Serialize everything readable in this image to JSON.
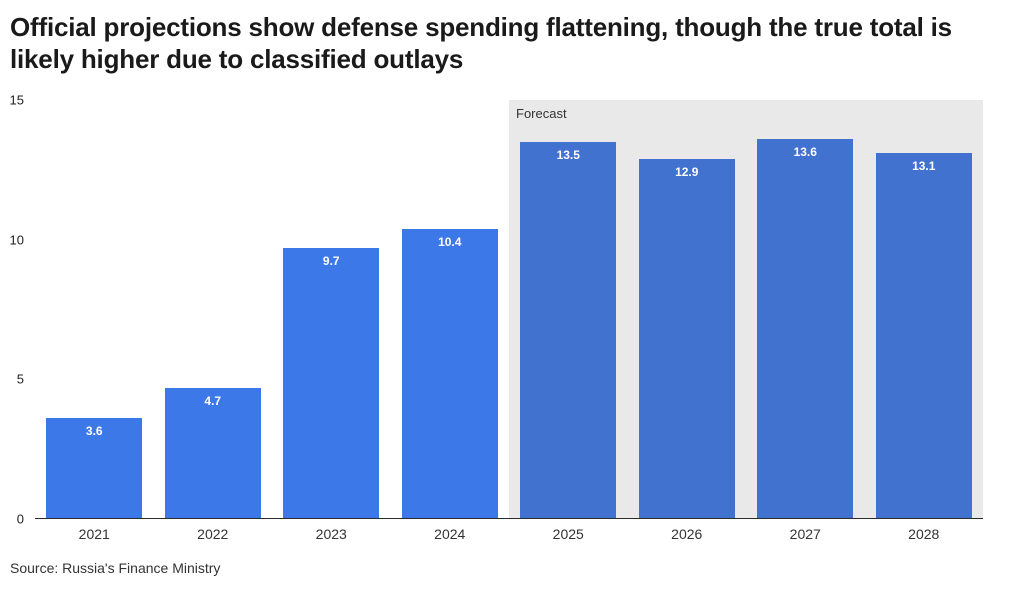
{
  "header": {
    "title": "Official projections show defense spending flattening, though the true total is likely higher due to classified outlays"
  },
  "chart_data": {
    "type": "bar",
    "categories": [
      "2021",
      "2022",
      "2023",
      "2024",
      "2025",
      "2026",
      "2027",
      "2028"
    ],
    "values": [
      3.6,
      4.7,
      9.7,
      10.4,
      13.5,
      12.9,
      13.6,
      13.1
    ],
    "forecast_from": "2025",
    "forecast_label": "Forecast",
    "title": "Official projections show defense spending flattening, though the true total is likely higher due to classified outlays",
    "xlabel": "",
    "ylabel": "",
    "ylim": [
      0,
      15
    ],
    "yticks": [
      0,
      5,
      10,
      15
    ],
    "grid": false,
    "legend": "none",
    "colors": {
      "bar_actual": "#3d78e8",
      "bar_forecast": "#4272cf",
      "forecast_band": "#e9e9e9",
      "axis_line": "#2b2b2b"
    }
  },
  "footer": {
    "source": "Source: Russia's Finance Ministry"
  }
}
